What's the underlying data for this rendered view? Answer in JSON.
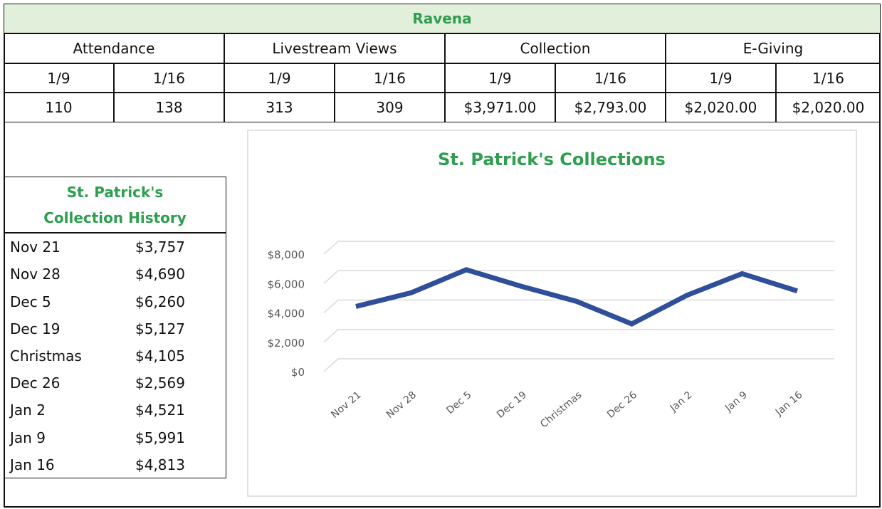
{
  "table": {
    "title": "Ravena",
    "groups": [
      "Attendance",
      "Livestream Views",
      "Collection",
      "E-Giving"
    ],
    "dates": [
      "1/9",
      "1/16",
      "1/9",
      "1/16",
      "1/9",
      "1/16",
      "1/9",
      "1/16"
    ],
    "values": [
      "110",
      "138",
      "313",
      "309",
      "$3,971.00",
      "$2,793.00",
      "$2,020.00",
      "$2,020.00"
    ]
  },
  "history": {
    "title": [
      "St. Patrick's",
      "Collection History"
    ],
    "rows": [
      [
        "Nov 21",
        "$3,757"
      ],
      [
        "Nov 28",
        "$4,690"
      ],
      [
        "Dec 5",
        "$6,260"
      ],
      [
        "Dec 19",
        "$5,127"
      ],
      [
        "Christmas",
        "$4,105"
      ],
      [
        "Dec 26",
        "$2,569"
      ],
      [
        "Jan 2",
        "$4,521"
      ],
      [
        "Jan 9",
        "$5,991"
      ],
      [
        "Jan 16",
        "$4,813"
      ]
    ]
  },
  "chart_data": {
    "type": "line",
    "title": "St. Patrick's Collections",
    "categories": [
      "Nov 21",
      "Nov 28",
      "Dec 5",
      "Dec 19",
      "Christmas",
      "Dec 26",
      "Jan 2",
      "Jan 9",
      "Jan 16"
    ],
    "values": [
      3757,
      4690,
      6260,
      5127,
      4105,
      2569,
      4521,
      5991,
      4813
    ],
    "color": "#2f4f9a",
    "ylim": [
      0,
      8000
    ],
    "yticks": [
      {
        "value": 0,
        "label": "$0"
      },
      {
        "value": 2000,
        "label": "$2,000"
      },
      {
        "value": 4000,
        "label": "$4,000"
      },
      {
        "value": 6000,
        "label": "$6,000"
      },
      {
        "value": 8000,
        "label": "$8,000"
      }
    ],
    "grid": true
  }
}
